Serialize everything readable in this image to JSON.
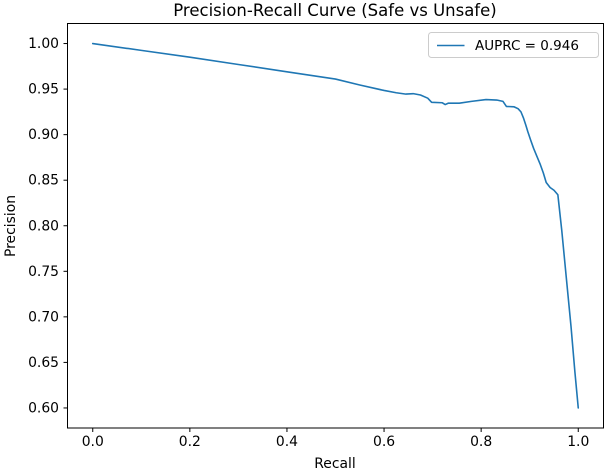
{
  "colors": {
    "line": "#1f77b4",
    "legend_edge": "#cccccc",
    "text": "#000000",
    "background": "#ffffff"
  },
  "chart_data": {
    "type": "line",
    "title": "Precision-Recall Curve (Safe vs Unsafe)",
    "xlabel": "Recall",
    "ylabel": "Precision",
    "xlim": [
      -0.052,
      1.052
    ],
    "ylim": [
      0.578,
      1.022
    ],
    "xticks": [
      0.0,
      0.2,
      0.4,
      0.6,
      0.8,
      1.0
    ],
    "xtick_labels": [
      "0.0",
      "0.2",
      "0.4",
      "0.6",
      "0.8",
      "1.0"
    ],
    "yticks": [
      0.6,
      0.65,
      0.7,
      0.75,
      0.8,
      0.85,
      0.9,
      0.95,
      1.0
    ],
    "ytick_labels": [
      "0.60",
      "0.65",
      "0.70",
      "0.75",
      "0.80",
      "0.85",
      "0.90",
      "0.95",
      "1.00"
    ],
    "grid": false,
    "legend": {
      "position": "upper right",
      "entries": [
        {
          "label": "AUPRC = 0.946",
          "color": "#1f77b4"
        }
      ]
    },
    "series": [
      {
        "name": "AUPRC = 0.946",
        "color": "#1f77b4",
        "auprc": 0.946,
        "points": [
          [
            0.0,
            1.0
          ],
          [
            0.1,
            0.9925
          ],
          [
            0.2,
            0.985
          ],
          [
            0.3,
            0.977
          ],
          [
            0.4,
            0.969
          ],
          [
            0.5,
            0.961
          ],
          [
            0.55,
            0.9545
          ],
          [
            0.6,
            0.9485
          ],
          [
            0.625,
            0.946
          ],
          [
            0.645,
            0.9445
          ],
          [
            0.66,
            0.945
          ],
          [
            0.675,
            0.9435
          ],
          [
            0.69,
            0.94
          ],
          [
            0.698,
            0.9355
          ],
          [
            0.72,
            0.935
          ],
          [
            0.726,
            0.933
          ],
          [
            0.732,
            0.9345
          ],
          [
            0.755,
            0.9345
          ],
          [
            0.78,
            0.9365
          ],
          [
            0.81,
            0.9385
          ],
          [
            0.832,
            0.938
          ],
          [
            0.845,
            0.9365
          ],
          [
            0.852,
            0.931
          ],
          [
            0.868,
            0.9305
          ],
          [
            0.876,
            0.9285
          ],
          [
            0.882,
            0.925
          ],
          [
            0.887,
            0.9185
          ],
          [
            0.892,
            0.9105
          ],
          [
            0.896,
            0.9035
          ],
          [
            0.902,
            0.894
          ],
          [
            0.908,
            0.885
          ],
          [
            0.915,
            0.876
          ],
          [
            0.922,
            0.867
          ],
          [
            0.928,
            0.858
          ],
          [
            0.934,
            0.8475
          ],
          [
            0.942,
            0.842
          ],
          [
            0.95,
            0.839
          ],
          [
            0.958,
            0.834
          ],
          [
            0.966,
            0.795
          ],
          [
            0.975,
            0.745
          ],
          [
            0.985,
            0.69
          ],
          [
            0.993,
            0.64
          ],
          [
            1.0,
            0.6
          ]
        ]
      }
    ]
  }
}
